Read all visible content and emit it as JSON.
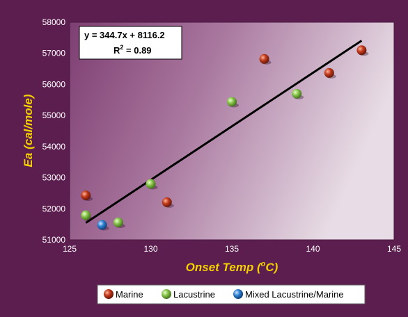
{
  "chart_data": {
    "type": "scatter",
    "xlabel": "Onset Temp (",
    "xlabel_sup": "o",
    "xlabel_end": "C)",
    "ylabel": "Ea (cal/mole)",
    "xlim": [
      125,
      145
    ],
    "ylim": [
      51000,
      58000
    ],
    "x_ticks": [
      125,
      130,
      135,
      140,
      145
    ],
    "y_ticks": [
      51000,
      52000,
      53000,
      54000,
      55000,
      56000,
      57000,
      58000
    ],
    "series": [
      {
        "name": "Marine",
        "color": "#c0391b",
        "points": [
          [
            126,
            52430
          ],
          [
            131,
            52210
          ],
          [
            137,
            56820
          ],
          [
            141,
            56370
          ],
          [
            143,
            57100
          ]
        ]
      },
      {
        "name": "Lacustrine",
        "color": "#7cbc3a",
        "points": [
          [
            126,
            51790
          ],
          [
            128,
            51560
          ],
          [
            130,
            52800
          ],
          [
            135,
            55440
          ],
          [
            139,
            55700
          ]
        ]
      },
      {
        "name": "Mixed Lacustrine/Marine",
        "color": "#2f7fd0",
        "points": [
          [
            127,
            51480
          ]
        ]
      }
    ],
    "trendline": {
      "slope": 344.7,
      "intercept": 8116.2,
      "x_range": [
        126,
        143
      ],
      "equation": "y = 344.7x + 8116.2",
      "r2_label": "R",
      "r2_sup": "2",
      "r2_value": " = 0.89"
    },
    "legend_position": "bottom"
  }
}
